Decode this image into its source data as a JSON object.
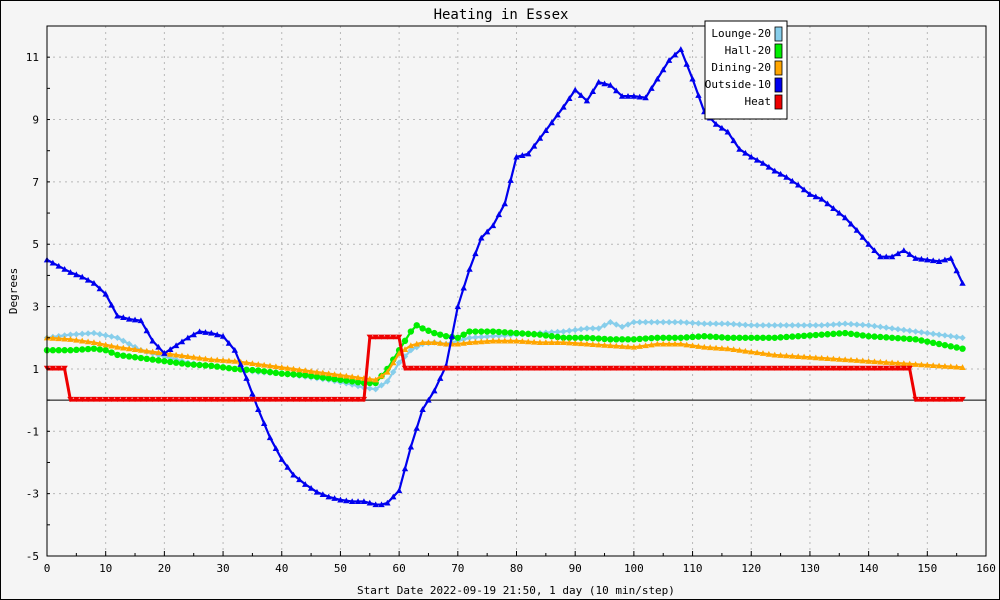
{
  "chart_data": {
    "type": "line",
    "title": "Heating in Essex",
    "xlabel": "Start Date 2022-09-19 21:50, 1 day (10 min/step)",
    "ylabel": "Degrees",
    "xlim": [
      0,
      160
    ],
    "ylim": [
      -5,
      12
    ],
    "x_ticks": [
      0,
      10,
      20,
      30,
      40,
      50,
      60,
      70,
      80,
      90,
      100,
      110,
      120,
      130,
      140,
      150,
      160
    ],
    "y_ticks": [
      -5,
      -3,
      -1,
      1,
      3,
      5,
      7,
      9,
      11
    ],
    "grid": true,
    "legend_position": "top-right",
    "series": [
      {
        "name": "Lounge-20",
        "color": "#87ceeb",
        "marker": "diamond",
        "x": [
          0,
          4,
          8,
          12,
          16,
          20,
          24,
          28,
          32,
          36,
          40,
          44,
          48,
          52,
          54,
          56,
          58,
          60,
          62,
          64,
          66,
          68,
          70,
          72,
          76,
          80,
          84,
          88,
          92,
          94,
          96,
          98,
          100,
          104,
          108,
          112,
          116,
          120,
          124,
          128,
          132,
          136,
          140,
          144,
          148,
          152,
          156
        ],
        "y": [
          2.0,
          2.1,
          2.15,
          2.0,
          1.6,
          1.4,
          1.2,
          1.1,
          1.0,
          0.9,
          0.85,
          0.75,
          0.65,
          0.5,
          0.4,
          0.35,
          0.6,
          1.2,
          1.6,
          1.8,
          1.85,
          1.8,
          1.9,
          2.0,
          2.05,
          2.1,
          2.15,
          2.2,
          2.3,
          2.3,
          2.5,
          2.35,
          2.5,
          2.5,
          2.5,
          2.45,
          2.45,
          2.4,
          2.4,
          2.4,
          2.4,
          2.45,
          2.4,
          2.3,
          2.2,
          2.1,
          2.0
        ]
      },
      {
        "name": "Hall-20",
        "color": "#00ee00",
        "marker": "circle",
        "x": [
          0,
          4,
          8,
          10,
          12,
          16,
          20,
          24,
          28,
          32,
          36,
          40,
          44,
          48,
          52,
          54,
          56,
          58,
          60,
          62,
          63,
          64,
          66,
          68,
          70,
          72,
          76,
          80,
          84,
          88,
          92,
          96,
          100,
          104,
          108,
          112,
          116,
          120,
          124,
          128,
          132,
          136,
          140,
          144,
          148,
          152,
          156
        ],
        "y": [
          1.6,
          1.6,
          1.65,
          1.6,
          1.45,
          1.35,
          1.25,
          1.15,
          1.1,
          1.0,
          0.95,
          0.85,
          0.8,
          0.7,
          0.6,
          0.55,
          0.55,
          1.0,
          1.6,
          2.2,
          2.4,
          2.3,
          2.15,
          2.05,
          2.0,
          2.2,
          2.2,
          2.15,
          2.1,
          2.0,
          2.0,
          1.95,
          1.95,
          2.0,
          2.0,
          2.05,
          2.0,
          2.0,
          2.0,
          2.05,
          2.1,
          2.15,
          2.05,
          2.0,
          1.95,
          1.8,
          1.65
        ]
      },
      {
        "name": "Dining-20",
        "color": "#ffa500",
        "marker": "triangle",
        "x": [
          0,
          4,
          8,
          12,
          16,
          20,
          24,
          28,
          32,
          36,
          40,
          44,
          48,
          52,
          54,
          56,
          58,
          60,
          62,
          64,
          66,
          68,
          70,
          72,
          76,
          80,
          84,
          88,
          92,
          96,
          100,
          104,
          108,
          112,
          116,
          120,
          124,
          128,
          132,
          136,
          140,
          144,
          148,
          152,
          156
        ],
        "y": [
          2.0,
          1.95,
          1.85,
          1.7,
          1.6,
          1.5,
          1.4,
          1.3,
          1.25,
          1.15,
          1.05,
          0.95,
          0.85,
          0.75,
          0.7,
          0.65,
          0.9,
          1.5,
          1.75,
          1.85,
          1.85,
          1.8,
          1.8,
          1.85,
          1.9,
          1.9,
          1.85,
          1.85,
          1.8,
          1.75,
          1.7,
          1.8,
          1.8,
          1.7,
          1.65,
          1.55,
          1.45,
          1.4,
          1.35,
          1.3,
          1.25,
          1.2,
          1.15,
          1.1,
          1.05
        ]
      },
      {
        "name": "Outside-10",
        "color": "#0000ee",
        "marker": "triangle",
        "x": [
          0,
          2,
          4,
          6,
          8,
          10,
          12,
          14,
          16,
          18,
          20,
          22,
          24,
          26,
          28,
          30,
          32,
          34,
          36,
          38,
          40,
          42,
          44,
          46,
          48,
          50,
          52,
          54,
          56,
          57,
          58,
          60,
          62,
          64,
          66,
          68,
          70,
          72,
          74,
          76,
          78,
          80,
          82,
          84,
          86,
          88,
          90,
          92,
          94,
          96,
          98,
          100,
          102,
          104,
          106,
          108,
          110,
          112,
          114,
          116,
          118,
          120,
          122,
          124,
          126,
          128,
          130,
          132,
          134,
          136,
          138,
          140,
          142,
          144,
          146,
          148,
          150,
          152,
          154,
          156
        ],
        "y": [
          4.5,
          4.3,
          4.1,
          3.95,
          3.75,
          3.4,
          2.7,
          2.6,
          2.55,
          1.9,
          1.5,
          1.75,
          2.0,
          2.2,
          2.15,
          2.05,
          1.6,
          0.7,
          -0.3,
          -1.2,
          -1.9,
          -2.4,
          -2.7,
          -2.95,
          -3.1,
          -3.2,
          -3.25,
          -3.25,
          -3.35,
          -3.35,
          -3.3,
          -2.9,
          -1.5,
          -0.3,
          0.3,
          1.1,
          3.0,
          4.2,
          5.2,
          5.6,
          6.3,
          7.8,
          7.9,
          8.4,
          8.9,
          9.4,
          9.95,
          9.6,
          10.2,
          10.1,
          9.75,
          9.75,
          9.7,
          10.3,
          10.9,
          11.25,
          10.3,
          9.25,
          8.85,
          8.6,
          8.05,
          7.8,
          7.6,
          7.35,
          7.15,
          6.9,
          6.6,
          6.45,
          6.15,
          5.85,
          5.45,
          5.0,
          4.6,
          4.6,
          4.8,
          4.55,
          4.5,
          4.45,
          4.55,
          3.75
        ]
      },
      {
        "name": "Heat",
        "color": "#ee0000",
        "marker": "triangle-down",
        "x": [
          0,
          3,
          4,
          54,
          55,
          60,
          61,
          69,
          70,
          147,
          148,
          156
        ],
        "y": [
          1,
          1,
          0,
          0,
          2,
          2,
          1,
          1,
          1,
          1,
          0,
          0
        ]
      }
    ]
  }
}
